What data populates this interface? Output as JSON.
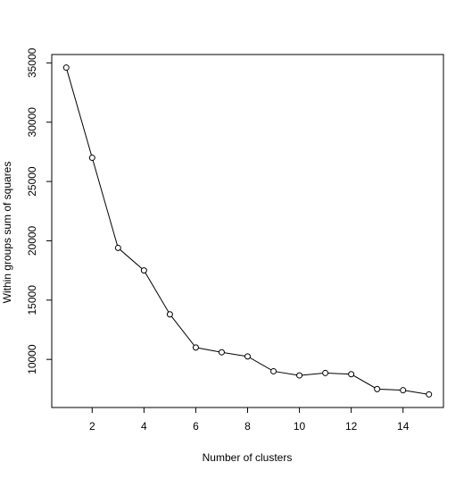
{
  "chart_data": {
    "type": "line",
    "title": "",
    "xlabel": "Number of clusters",
    "ylabel": "Within groups sum of squares",
    "x": [
      1,
      2,
      3,
      4,
      5,
      6,
      7,
      8,
      9,
      10,
      11,
      12,
      13,
      14,
      15
    ],
    "y": [
      34600,
      27000,
      19400,
      17500,
      13800,
      11000,
      10600,
      10250,
      9000,
      8650,
      8850,
      8750,
      7500,
      7400,
      7050
    ],
    "xlim": [
      0.44,
      15.56
    ],
    "ylim": [
      5944,
      35706
    ],
    "x_ticks": [
      2,
      4,
      6,
      8,
      10,
      12,
      14
    ],
    "y_ticks": [
      10000,
      15000,
      20000,
      25000,
      30000,
      35000
    ],
    "x_tick_labels": [
      "2",
      "4",
      "6",
      "8",
      "10",
      "12",
      "14"
    ],
    "y_tick_labels": [
      "10000",
      "15000",
      "20000",
      "25000",
      "30000",
      "35000"
    ],
    "grid": false,
    "legend": "none",
    "line_color": "#000000",
    "marker": "open-circle"
  }
}
